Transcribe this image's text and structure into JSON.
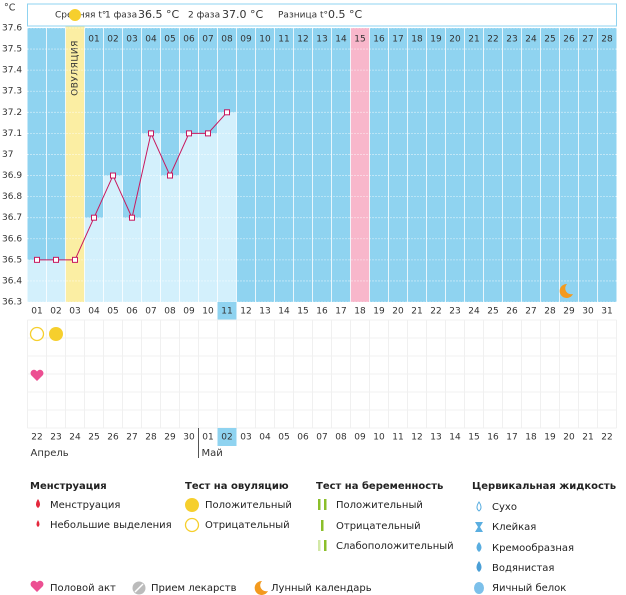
{
  "header": {
    "unit": "°C",
    "avg_label": "Средняя t°",
    "phase1_label": "1 фаза",
    "phase1_value": "36.5 °С",
    "phase2_label": "2 фаза",
    "phase2_value": "37.0 °С",
    "diff_label": "Разница t°",
    "diff_value": "0.5 °С"
  },
  "chart_data": {
    "type": "line",
    "categories": [
      "01",
      "02",
      "03",
      "04",
      "05",
      "06",
      "07",
      "08",
      "09",
      "10",
      "11",
      "12",
      "13",
      "14",
      "15",
      "16",
      "17",
      "18",
      "19",
      "20",
      "21",
      "22",
      "23",
      "24",
      "25",
      "26",
      "27",
      "28",
      "29",
      "30",
      "31"
    ],
    "cycle_days": [
      null,
      null,
      null,
      "01",
      "02",
      "03",
      "04",
      "05",
      "06",
      "07",
      "08",
      "09",
      "10",
      "11",
      "12",
      "13",
      "14",
      "15",
      "16",
      "17",
      "18",
      "19",
      "20",
      "21",
      "22",
      "23",
      "24",
      "25",
      "26",
      "27",
      "28"
    ],
    "series": [
      {
        "color": "#c8185e",
        "values": [
          36.5,
          36.5,
          36.5,
          36.7,
          36.9,
          36.7,
          37.1,
          36.9,
          37.1,
          37.1,
          37.2,
          null,
          null,
          null,
          null,
          null,
          null,
          null,
          null,
          null,
          null,
          null,
          null,
          null,
          null,
          null,
          null,
          null,
          null,
          null,
          null
        ]
      }
    ],
    "ylim": [
      36.3,
      37.6
    ],
    "yticks": [
      37.6,
      37.5,
      37.4,
      37.3,
      37.2,
      37.1,
      37,
      36.9,
      36.8,
      36.7,
      36.6,
      36.5,
      36.4,
      36.3
    ],
    "grid": true,
    "ovulation": {
      "label": "ОВУЛЯЦИЯ",
      "day": "03",
      "color": "#fbeea3"
    },
    "marked_day": {
      "day": "18",
      "color": "#f8b7cb"
    },
    "today": "11",
    "moon_day": "29",
    "ovulation_test": {
      "negative": [
        "01"
      ],
      "positive": [
        "02"
      ]
    },
    "intercourse": [
      "01"
    ],
    "dates": [
      {
        "text": "22"
      },
      {
        "text": "23"
      },
      {
        "text": "24"
      },
      {
        "text": "25"
      },
      {
        "text": "26"
      },
      {
        "text": "27",
        "weekend": true
      },
      {
        "text": "28",
        "weekend": true
      },
      {
        "text": "29"
      },
      {
        "text": "30"
      },
      {
        "text": "01"
      },
      {
        "text": "02",
        "today": true
      },
      {
        "text": "03"
      },
      {
        "text": "04",
        "weekend": true
      },
      {
        "text": "05",
        "weekend": true
      },
      {
        "text": "06"
      },
      {
        "text": "07"
      },
      {
        "text": "08"
      },
      {
        "text": "09"
      },
      {
        "text": "10"
      },
      {
        "text": "11",
        "weekend": true
      },
      {
        "text": "12",
        "weekend": true
      },
      {
        "text": "13"
      },
      {
        "text": "14"
      },
      {
        "text": "15"
      },
      {
        "text": "16"
      },
      {
        "text": "17"
      },
      {
        "text": "18",
        "weekend": true
      },
      {
        "text": "19",
        "weekend": true
      },
      {
        "text": "20"
      },
      {
        "text": "21"
      },
      {
        "text": "22"
      }
    ],
    "months": [
      {
        "name": "Апрель",
        "from": "22"
      },
      {
        "name": "Май",
        "from": "01"
      }
    ]
  },
  "legend": {
    "menstruation": {
      "title": "Менструация",
      "items": [
        "Менструация",
        "Небольшие выделения"
      ]
    },
    "ovulation_test": {
      "title": "Тест на овуляцию",
      "items": [
        "Положительный",
        "Отрицательный"
      ]
    },
    "pregnancy_test": {
      "title": "Тест на беременность",
      "items": [
        "Положительный",
        "Отрицательный",
        "Слабоположительный"
      ]
    },
    "cervical_fluid": {
      "title": "Цервикальная жидкость",
      "items": [
        "Сухо",
        "Клейкая",
        "Кремообразная",
        "Водянистая",
        "Яичный белок"
      ]
    },
    "other": [
      "Половой акт",
      "Прием лекарств",
      "Лунный календарь"
    ]
  }
}
